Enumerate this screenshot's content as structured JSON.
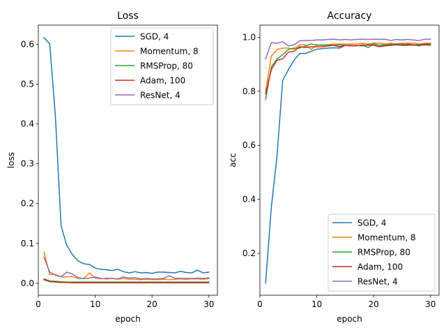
{
  "chart_data": [
    {
      "type": "line",
      "title": "Loss",
      "xlabel": "epoch",
      "ylabel": "loss",
      "xlim": [
        0,
        31.5
      ],
      "ylim": [
        -0.03,
        0.648
      ],
      "xticks": [
        0,
        10,
        20,
        30
      ],
      "yticks": [
        0.0,
        0.1,
        0.2,
        0.3,
        0.4,
        0.5,
        0.6
      ],
      "grid": false,
      "legend": "top-right",
      "series": [
        {
          "name": "SGD, 4",
          "color": "#1f77b4",
          "x": [
            1,
            2,
            3,
            4,
            5,
            6,
            7,
            8,
            9,
            10,
            11,
            12,
            13,
            14,
            15,
            16,
            17,
            18,
            19,
            20,
            21,
            22,
            23,
            24,
            25,
            26,
            27,
            28,
            29,
            30
          ],
          "y": [
            0.617,
            0.601,
            0.42,
            0.145,
            0.095,
            0.072,
            0.056,
            0.049,
            0.047,
            0.038,
            0.035,
            0.034,
            0.032,
            0.035,
            0.029,
            0.026,
            0.029,
            0.026,
            0.027,
            0.025,
            0.028,
            0.028,
            0.027,
            0.026,
            0.03,
            0.027,
            0.026,
            0.033,
            0.026,
            0.028
          ]
        },
        {
          "name": "Momentum, 8",
          "color": "#ff7f0e",
          "x": [
            1,
            2,
            3,
            4,
            5,
            6,
            7,
            8,
            9,
            10,
            11,
            12,
            13,
            14,
            15,
            16,
            17,
            18,
            19,
            20,
            21,
            22,
            23,
            24,
            25,
            26,
            27,
            28,
            29,
            30
          ],
          "y": [
            0.078,
            0.022,
            0.022,
            0.016,
            0.016,
            0.017,
            0.012,
            0.012,
            0.026,
            0.013,
            0.011,
            0.013,
            0.012,
            0.01,
            0.012,
            0.01,
            0.01,
            0.009,
            0.01,
            0.009,
            0.009,
            0.01,
            0.009,
            0.01,
            0.011,
            0.01,
            0.011,
            0.011,
            0.01,
            0.012
          ]
        },
        {
          "name": "RMSProp, 80",
          "color": "#2ca02c",
          "x": [
            1,
            2,
            3,
            4,
            5,
            6,
            7,
            8,
            9,
            10,
            11,
            12,
            13,
            14,
            15,
            16,
            17,
            18,
            19,
            20,
            21,
            22,
            23,
            24,
            25,
            26,
            27,
            28,
            29,
            30
          ],
          "y": [
            0.011,
            0.006,
            0.005,
            0.004,
            0.003,
            0.003,
            0.003,
            0.003,
            0.003,
            0.003,
            0.003,
            0.003,
            0.003,
            0.003,
            0.003,
            0.003,
            0.003,
            0.003,
            0.003,
            0.003,
            0.003,
            0.003,
            0.003,
            0.003,
            0.003,
            0.003,
            0.003,
            0.003,
            0.003,
            0.003
          ]
        },
        {
          "name": "Adam, 100",
          "color": "#d62728",
          "x": [
            1,
            2,
            3,
            4,
            5,
            6,
            7,
            8,
            9,
            10,
            11,
            12,
            13,
            14,
            15,
            16,
            17,
            18,
            19,
            20,
            21,
            22,
            23,
            24,
            25,
            26,
            27,
            28,
            29,
            30
          ],
          "y": [
            0.009,
            0.004,
            0.003,
            0.002,
            0.002,
            0.001,
            0.001,
            0.001,
            0.001,
            0.001,
            0.001,
            0.001,
            0.001,
            0.001,
            0.001,
            0.001,
            0.001,
            0.001,
            0.001,
            0.001,
            0.001,
            0.001,
            0.001,
            0.001,
            0.001,
            0.001,
            0.001,
            0.001,
            0.001,
            0.001
          ]
        },
        {
          "name": "ResNet, 4",
          "color": "#9467bd",
          "x": [
            1,
            2,
            3,
            4,
            5,
            6,
            7,
            8,
            9,
            10,
            11,
            12,
            13,
            14,
            15,
            16,
            17,
            18,
            19,
            20,
            21,
            22,
            23,
            24,
            25,
            26,
            27,
            28,
            29,
            30
          ],
          "y": [
            0.065,
            0.028,
            0.02,
            0.016,
            0.028,
            0.023,
            0.014,
            0.012,
            0.013,
            0.016,
            0.012,
            0.011,
            0.012,
            0.011,
            0.016,
            0.013,
            0.014,
            0.011,
            0.012,
            0.011,
            0.011,
            0.012,
            0.019,
            0.013,
            0.012,
            0.012,
            0.012,
            0.013,
            0.012,
            0.014
          ]
        }
      ]
    },
    {
      "type": "line",
      "title": "Accuracy",
      "xlabel": "epoch",
      "ylabel": "acc",
      "xlim": [
        0,
        31.5
      ],
      "ylim": [
        0.045,
        1.045
      ],
      "xticks": [
        0,
        10,
        20,
        30
      ],
      "yticks": [
        0.2,
        0.4,
        0.6,
        0.8,
        1.0
      ],
      "grid": false,
      "legend": "bottom-right",
      "series": [
        {
          "name": "SGD, 4",
          "color": "#1f77b4",
          "x": [
            1,
            2,
            3,
            4,
            5,
            6,
            7,
            8,
            9,
            10,
            11,
            12,
            13,
            14,
            15,
            16,
            17,
            18,
            19,
            20,
            21,
            22,
            23,
            24,
            25,
            26,
            27,
            28,
            29,
            30
          ],
          "y": [
            0.09,
            0.37,
            0.56,
            0.84,
            0.88,
            0.915,
            0.94,
            0.94,
            0.948,
            0.956,
            0.958,
            0.96,
            0.961,
            0.96,
            0.97,
            0.968,
            0.968,
            0.972,
            0.97,
            0.975,
            0.97,
            0.972,
            0.975,
            0.975,
            0.97,
            0.97,
            0.972,
            0.968,
            0.975,
            0.975
          ]
        },
        {
          "name": "Momentum, 8",
          "color": "#ff7f0e",
          "x": [
            1,
            2,
            3,
            4,
            5,
            6,
            7,
            8,
            9,
            10,
            11,
            12,
            13,
            14,
            15,
            16,
            17,
            18,
            19,
            20,
            21,
            22,
            23,
            24,
            25,
            26,
            27,
            28,
            29,
            30
          ],
          "y": [
            0.8,
            0.93,
            0.955,
            0.96,
            0.96,
            0.955,
            0.972,
            0.972,
            0.955,
            0.97,
            0.972,
            0.972,
            0.975,
            0.975,
            0.975,
            0.975,
            0.975,
            0.978,
            0.975,
            0.978,
            0.978,
            0.975,
            0.978,
            0.975,
            0.978,
            0.978,
            0.978,
            0.975,
            0.978,
            0.978
          ]
        },
        {
          "name": "RMSProp, 80",
          "color": "#2ca02c",
          "x": [
            1,
            2,
            3,
            4,
            5,
            6,
            7,
            8,
            9,
            10,
            11,
            12,
            13,
            14,
            15,
            16,
            17,
            18,
            19,
            20,
            21,
            22,
            23,
            24,
            25,
            26,
            27,
            28,
            29,
            30
          ],
          "y": [
            0.77,
            0.89,
            0.92,
            0.935,
            0.955,
            0.96,
            0.96,
            0.968,
            0.975,
            0.972,
            0.97,
            0.972,
            0.97,
            0.972,
            0.97,
            0.97,
            0.968,
            0.972,
            0.962,
            0.975,
            0.97,
            0.972,
            0.972,
            0.975,
            0.975,
            0.972,
            0.97,
            0.975,
            0.972,
            0.97
          ]
        },
        {
          "name": "Adam, 100",
          "color": "#d62728",
          "x": [
            1,
            2,
            3,
            4,
            5,
            6,
            7,
            8,
            9,
            10,
            11,
            12,
            13,
            14,
            15,
            16,
            17,
            18,
            19,
            20,
            21,
            22,
            23,
            24,
            25,
            26,
            27,
            28,
            29,
            30
          ],
          "y": [
            0.79,
            0.88,
            0.915,
            0.92,
            0.945,
            0.948,
            0.965,
            0.962,
            0.965,
            0.965,
            0.965,
            0.968,
            0.97,
            0.965,
            0.97,
            0.968,
            0.97,
            0.968,
            0.972,
            0.97,
            0.965,
            0.968,
            0.97,
            0.972,
            0.97,
            0.975,
            0.972,
            0.97,
            0.972,
            0.975
          ]
        },
        {
          "name": "ResNet, 4",
          "color": "#9467bd",
          "x": [
            1,
            2,
            3,
            4,
            5,
            6,
            7,
            8,
            9,
            10,
            11,
            12,
            13,
            14,
            15,
            16,
            17,
            18,
            19,
            20,
            21,
            22,
            23,
            24,
            25,
            26,
            27,
            28,
            29,
            30
          ],
          "y": [
            0.92,
            0.98,
            0.978,
            0.983,
            0.968,
            0.972,
            0.987,
            0.988,
            0.988,
            0.99,
            0.99,
            0.992,
            0.993,
            0.99,
            0.992,
            0.99,
            0.992,
            0.993,
            0.992,
            0.993,
            0.992,
            0.993,
            0.988,
            0.992,
            0.99,
            0.992,
            0.99,
            0.988,
            0.993,
            0.993
          ]
        }
      ]
    }
  ]
}
